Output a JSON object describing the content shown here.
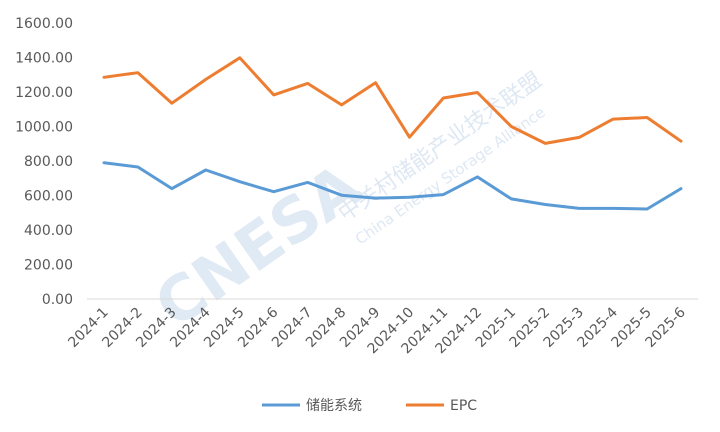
{
  "chart_data": {
    "type": "line",
    "categories": [
      "2024-1",
      "2024-2",
      "2024-3",
      "2024-4",
      "2024-5",
      "2024-6",
      "2024-7",
      "2024-8",
      "2024-9",
      "2024-10",
      "2024-11",
      "2024-12",
      "2025-1",
      "2025-2",
      "2025-3",
      "2025-4",
      "2025-5",
      "2025-6"
    ],
    "series": [
      {
        "name": "储能系统",
        "color": "#5b9bd5",
        "values": [
          790,
          765,
          640,
          748,
          680,
          622,
          676,
          602,
          585,
          590,
          605,
          708,
          580,
          548,
          525,
          525,
          522,
          640
        ]
      },
      {
        "name": "EPC",
        "color": "#ed7d31",
        "values": [
          1285,
          1312,
          1135,
          1273,
          1398,
          1183,
          1250,
          1125,
          1254,
          938,
          1165,
          1197,
          1000,
          902,
          937,
          1043,
          1052,
          915
        ]
      }
    ],
    "yticks": [
      "0.00",
      "200.00",
      "400.00",
      "600.00",
      "800.00",
      "1000.00",
      "1200.00",
      "1400.00",
      "1600.00"
    ],
    "ylim": [
      0,
      1600
    ],
    "grid": false,
    "legend_position": "bottom",
    "title": "",
    "xlabel": "",
    "ylabel": ""
  },
  "watermark": {
    "logo": "CNESA",
    "cn": "中关村储能产业技术联盟",
    "en": "China Energy Storage Alliance"
  }
}
